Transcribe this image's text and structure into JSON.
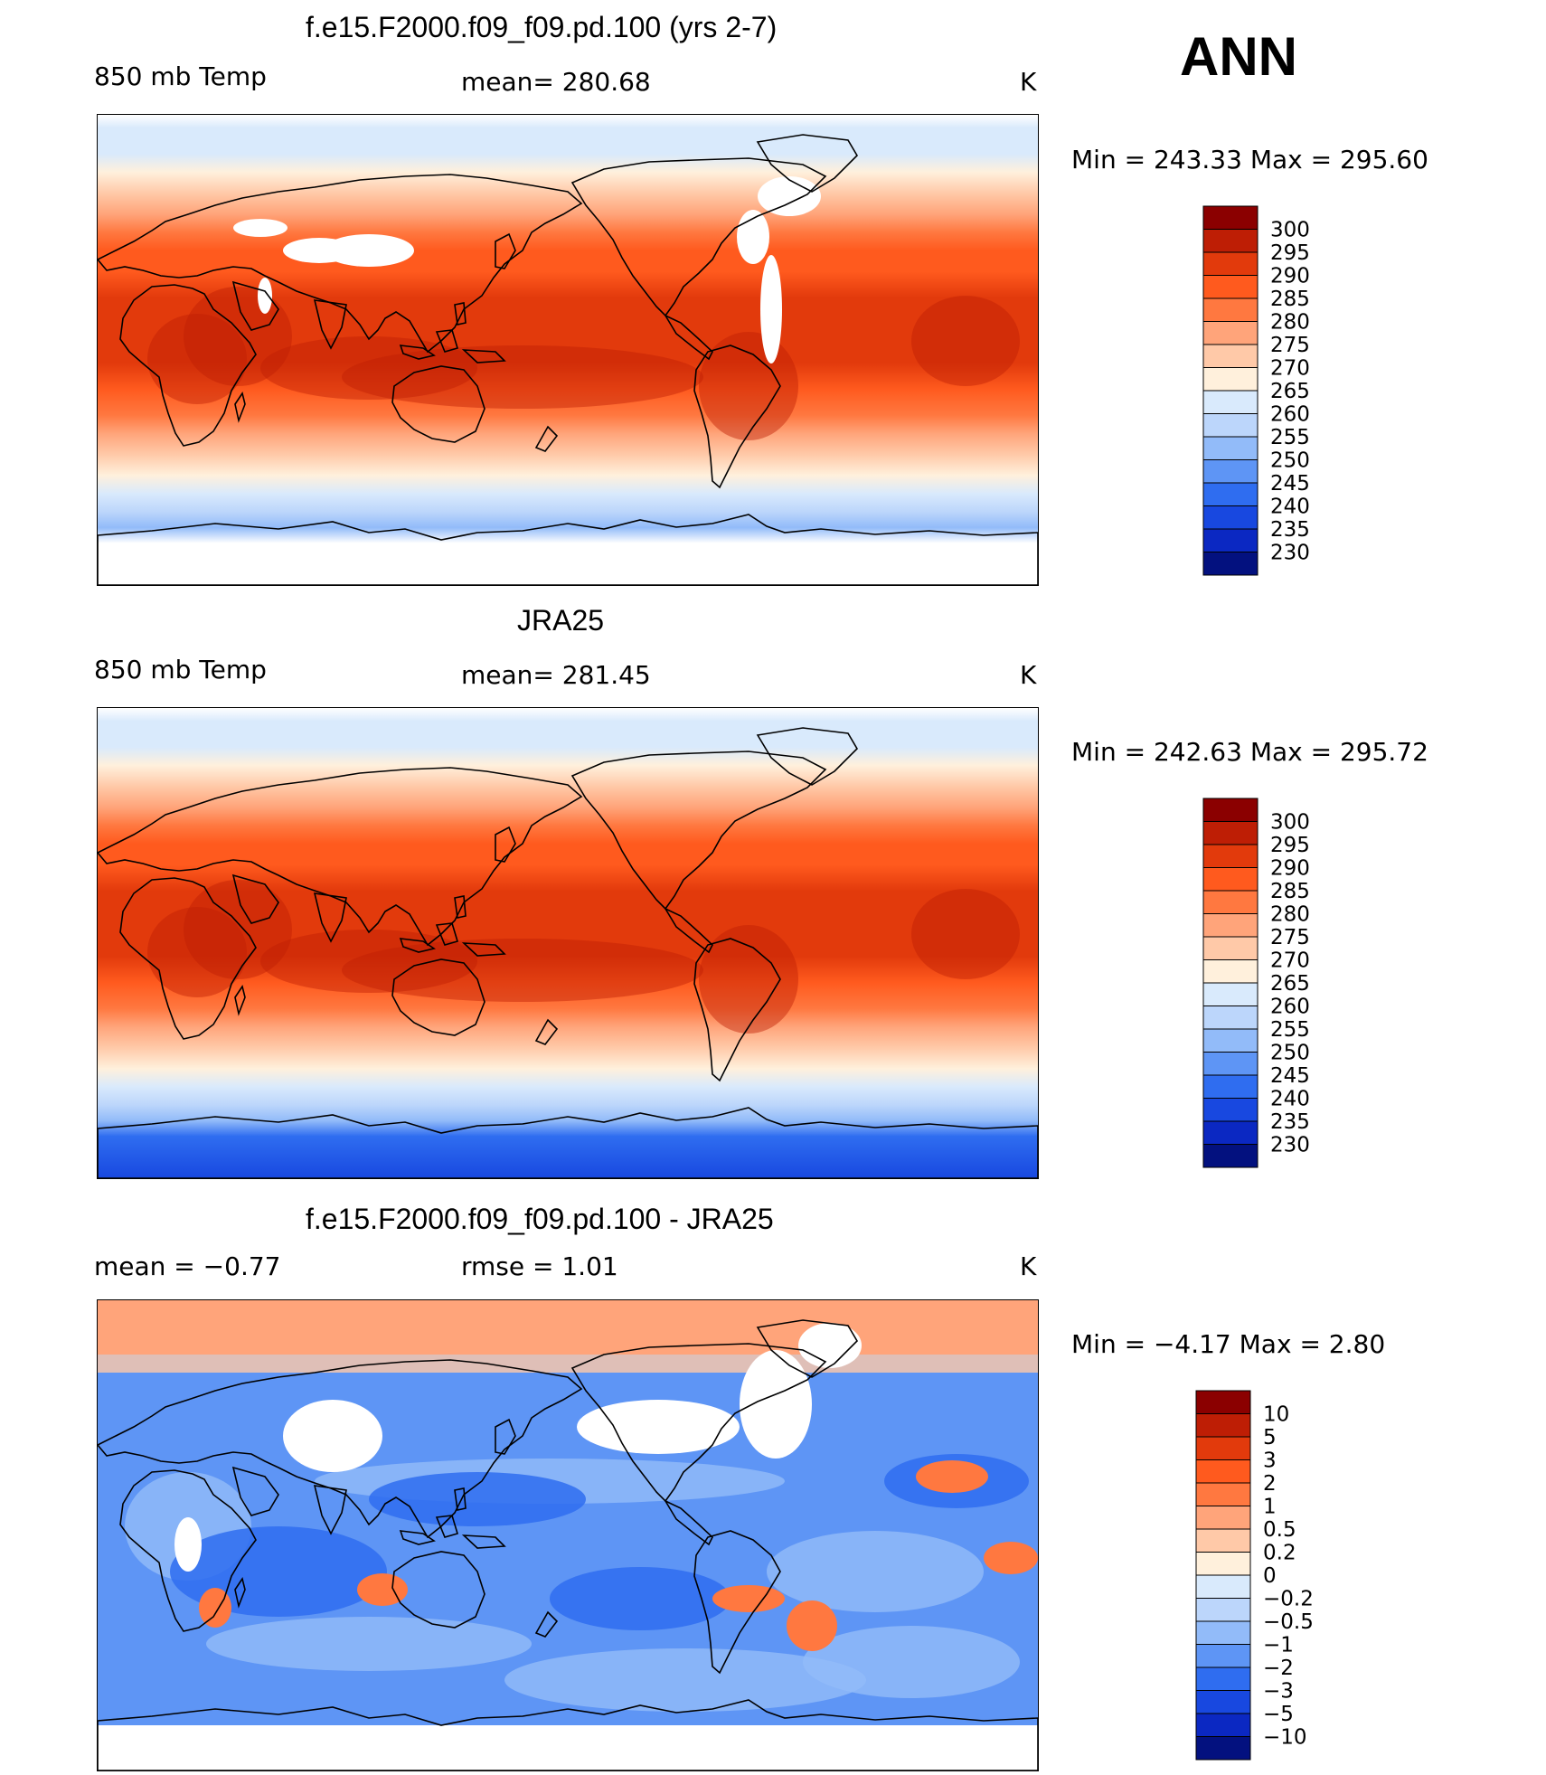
{
  "season": "ANN",
  "panels": [
    {
      "title": "f.e15.F2000.f09_f09.pd.100 (yrs 2-7)",
      "left": "850 mb Temp",
      "center": "mean= 280.68",
      "units": "K",
      "minmax": "Min  =  243.33  Max  =  295.60",
      "palette": "abs",
      "levels": [
        "300",
        "295",
        "290",
        "285",
        "280",
        "275",
        "270",
        "265",
        "260",
        "255",
        "250",
        "245",
        "240",
        "235",
        "230"
      ]
    },
    {
      "title": "JRA25",
      "left": "850 mb Temp",
      "center": "mean= 281.45",
      "units": "K",
      "minmax": "Min  =  242.63  Max  =  295.72",
      "palette": "abs",
      "levels": [
        "300",
        "295",
        "290",
        "285",
        "280",
        "275",
        "270",
        "265",
        "260",
        "255",
        "250",
        "245",
        "240",
        "235",
        "230"
      ]
    },
    {
      "title": "f.e15.F2000.f09_f09.pd.100 - JRA25",
      "left": "mean =    −0.77",
      "center": "rmse =     1.01",
      "units": "K",
      "minmax": "Min  =    −4.17  Max  =      2.80",
      "palette": "diff",
      "levels": [
        "10",
        "5",
        "3",
        "2",
        "1",
        "0.5",
        "0.2",
        "0",
        "−0.2",
        "−0.5",
        "−1",
        "−2",
        "−3",
        "−5",
        "−10"
      ]
    }
  ],
  "colors": {
    "abs": [
      "#8b0000",
      "#be1e05",
      "#e23a0c",
      "#ff5a1e",
      "#ff7840",
      "#ffa47a",
      "#ffc9a8",
      "#fff0dc",
      "#d9eafc",
      "#bcd6fb",
      "#92bbf9",
      "#5e95f5",
      "#2f6df0",
      "#1848e0",
      "#0b28c2",
      "#03117f"
    ],
    "diff": [
      "#8b0000",
      "#be1e05",
      "#e23a0c",
      "#ff5a1e",
      "#ff7840",
      "#ffa47a",
      "#ffc9a8",
      "#fff0dc",
      "#d9eafc",
      "#bcd6fb",
      "#92bbf9",
      "#5e95f5",
      "#2f6df0",
      "#1848e0",
      "#0b28c2",
      "#03117f"
    ]
  }
}
